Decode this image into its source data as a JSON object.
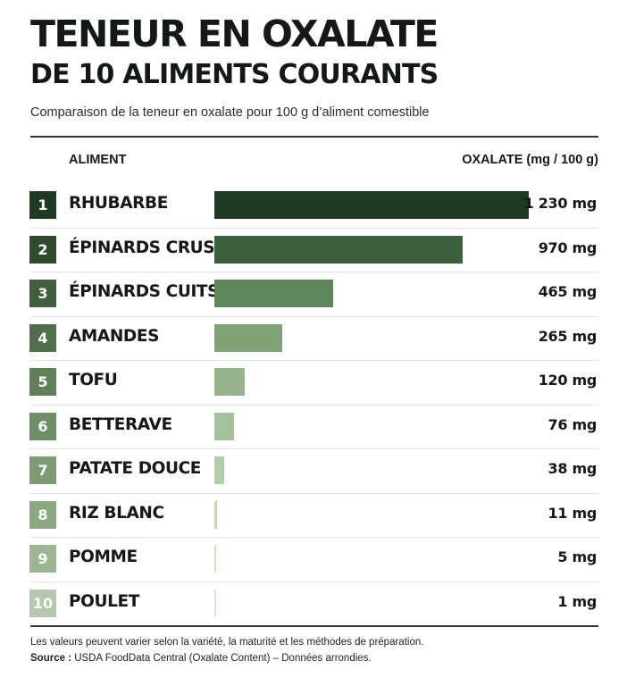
{
  "header": {
    "title_line1": "TENEUR EN OXALATE",
    "title_line2": "DE 10 ALIMENTS COURANTS",
    "subtitle": "Comparaison de la teneur en oxalate pour 100 g d’aliment comestible"
  },
  "columns": {
    "left": "ALIMENT",
    "right": "OXALATE (mg / 100 g)"
  },
  "chart_data": {
    "type": "bar",
    "orientation": "horizontal",
    "ranks": [
      "1",
      "2",
      "3",
      "4",
      "5",
      "6",
      "7",
      "8",
      "9",
      "10"
    ],
    "categories": [
      "RHUBARBE",
      "ÉPINARDS CRUS",
      "ÉPINARDS CUITS",
      "AMANDES",
      "TOFU",
      "BETTERAVE",
      "PATATE DOUCE",
      "RIZ BLANC",
      "POMME",
      "POULET"
    ],
    "values": [
      1230,
      970,
      465,
      265,
      120,
      76,
      38,
      11,
      5,
      1
    ],
    "value_labels": [
      "1 230 mg",
      "970 mg",
      "465 mg",
      "265 mg",
      "120 mg",
      "76 mg",
      "38 mg",
      "11 mg",
      "5 mg",
      "1 mg"
    ],
    "colors": [
      "#1f3a24",
      "#3c5f3b",
      "#5f855a",
      "#7fa276",
      "#95b48c",
      "#a4c09c",
      "#b3cdab",
      "#c0d6b9",
      "#cddfc7",
      "#d8e6d3"
    ],
    "badge_colors": [
      "#1f3a24",
      "#2f4c2f",
      "#3f5f3d",
      "#4f6f4a",
      "#5f8058",
      "#6e8e66",
      "#7d9c74",
      "#8aa881",
      "#9db593",
      "#b5c8ad"
    ],
    "xlim": [
      0,
      1230
    ],
    "grid": false,
    "legend": "none"
  },
  "footer": {
    "note": "Les valeurs peuvent varier selon la variété, la maturité et les méthodes de préparation.",
    "source_label": "Source :",
    "source_text": " USDA FoodData Central (Oxalate Content) – Données arrondies."
  }
}
